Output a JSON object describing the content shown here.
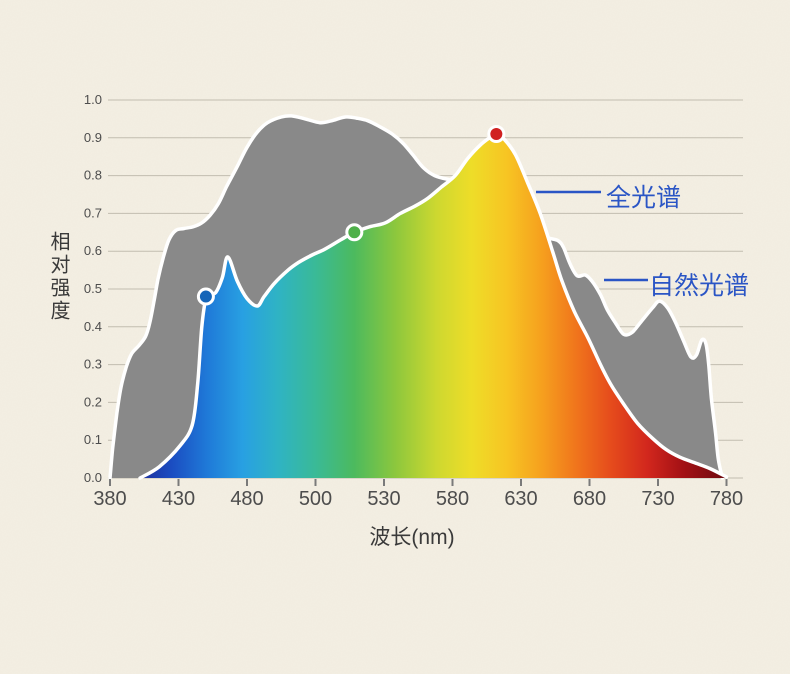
{
  "page": {
    "background_color": "#f4efe3",
    "grid_color": "#c2bdb0",
    "tick_color": "#7a7a7a",
    "tick_label_color": "#4d4d4d",
    "axis_title_color": "#3a3a3a"
  },
  "chart_data": {
    "type": "area",
    "title": "",
    "xlabel": "波长(nm)",
    "ylabel": "相对强度",
    "x_tick_labels": [
      "380",
      "430",
      "480",
      "500",
      "530",
      "580",
      "630",
      "680",
      "730",
      "780"
    ],
    "x_tick_values": [
      380,
      430,
      480,
      500,
      530,
      580,
      630,
      680,
      730,
      780
    ],
    "y_tick_labels": [
      "0.0",
      "0.1",
      "0.2",
      "0.3",
      "0.4",
      "0.5",
      "0.6",
      "0.7",
      "0.8",
      "0.9",
      "1.0"
    ],
    "y_tick_values": [
      0,
      0.1,
      0.2,
      0.3,
      0.4,
      0.5,
      0.6,
      0.7,
      0.8,
      0.9,
      1.0
    ],
    "ylim": [
      0,
      1
    ],
    "grid": true,
    "series": [
      {
        "name": "自然光谱",
        "type": "area",
        "fill": "#898989",
        "outline": "#ffffff",
        "points": [
          [
            380,
            0
          ],
          [
            382,
            0.08
          ],
          [
            385,
            0.17
          ],
          [
            388,
            0.24
          ],
          [
            392,
            0.295
          ],
          [
            396,
            0.33
          ],
          [
            401,
            0.35
          ],
          [
            406,
            0.375
          ],
          [
            409,
            0.41
          ],
          [
            412,
            0.465
          ],
          [
            415,
            0.525
          ],
          [
            419,
            0.585
          ],
          [
            423,
            0.63
          ],
          [
            428,
            0.655
          ],
          [
            434,
            0.66
          ],
          [
            441,
            0.665
          ],
          [
            447,
            0.675
          ],
          [
            453,
            0.695
          ],
          [
            459,
            0.725
          ],
          [
            465,
            0.77
          ],
          [
            473,
            0.825
          ],
          [
            480,
            0.875
          ],
          [
            483,
            0.915
          ],
          [
            486,
            0.94
          ],
          [
            490,
            0.955
          ],
          [
            493,
            0.958
          ],
          [
            497,
            0.95
          ],
          [
            502,
            0.94
          ],
          [
            507,
            0.945
          ],
          [
            513,
            0.955
          ],
          [
            518,
            0.952
          ],
          [
            523,
            0.945
          ],
          [
            528,
            0.93
          ],
          [
            536,
            0.91
          ],
          [
            544,
            0.885
          ],
          [
            551,
            0.855
          ],
          [
            559,
            0.82
          ],
          [
            567,
            0.8
          ],
          [
            577,
            0.79
          ],
          [
            587,
            0.785
          ],
          [
            596,
            0.765
          ],
          [
            607,
            0.73
          ],
          [
            618,
            0.695
          ],
          [
            629,
            0.67
          ],
          [
            640,
            0.65
          ],
          [
            650,
            0.635
          ],
          [
            657,
            0.628
          ],
          [
            661,
            0.61
          ],
          [
            666,
            0.565
          ],
          [
            671,
            0.535
          ],
          [
            677,
            0.537
          ],
          [
            682,
            0.52
          ],
          [
            688,
            0.485
          ],
          [
            693,
            0.445
          ],
          [
            699,
            0.41
          ],
          [
            705,
            0.38
          ],
          [
            711,
            0.385
          ],
          [
            718,
            0.415
          ],
          [
            726,
            0.45
          ],
          [
            731,
            0.468
          ],
          [
            737,
            0.45
          ],
          [
            743,
            0.41
          ],
          [
            749,
            0.36
          ],
          [
            754,
            0.32
          ],
          [
            758,
            0.325
          ],
          [
            762,
            0.365
          ],
          [
            765,
            0.355
          ],
          [
            767,
            0.3
          ],
          [
            769,
            0.21
          ],
          [
            772,
            0.12
          ],
          [
            774,
            0.05
          ],
          [
            777,
            0
          ]
        ]
      },
      {
        "name": "全光谱",
        "type": "area",
        "fill": "spectrum_gradient",
        "outline": "#ffffff",
        "points": [
          [
            402,
            0
          ],
          [
            416,
            0.03
          ],
          [
            431,
            0.085
          ],
          [
            440,
            0.14
          ],
          [
            444,
            0.25
          ],
          [
            447,
            0.4
          ],
          [
            450,
            0.475
          ],
          [
            453,
            0.49
          ],
          [
            457,
            0.49
          ],
          [
            462,
            0.53
          ],
          [
            466,
            0.585
          ],
          [
            473,
            0.52
          ],
          [
            480,
            0.475
          ],
          [
            483,
            0.455
          ],
          [
            485,
            0.48
          ],
          [
            488,
            0.515
          ],
          [
            492,
            0.55
          ],
          [
            495,
            0.57
          ],
          [
            499,
            0.59
          ],
          [
            504,
            0.605
          ],
          [
            511,
            0.63
          ],
          [
            517,
            0.65
          ],
          [
            524,
            0.665
          ],
          [
            531,
            0.675
          ],
          [
            542,
            0.7
          ],
          [
            553,
            0.72
          ],
          [
            562,
            0.74
          ],
          [
            572,
            0.77
          ],
          [
            582,
            0.8
          ],
          [
            591,
            0.845
          ],
          [
            600,
            0.88
          ],
          [
            607,
            0.9
          ],
          [
            612,
            0.91
          ],
          [
            618,
            0.895
          ],
          [
            626,
            0.855
          ],
          [
            635,
            0.78
          ],
          [
            644,
            0.7
          ],
          [
            653,
            0.6
          ],
          [
            660,
            0.52
          ],
          [
            669,
            0.44
          ],
          [
            679,
            0.37
          ],
          [
            688,
            0.3
          ],
          [
            696,
            0.245
          ],
          [
            706,
            0.19
          ],
          [
            715,
            0.145
          ],
          [
            726,
            0.105
          ],
          [
            736,
            0.075
          ],
          [
            746,
            0.055
          ],
          [
            757,
            0.04
          ],
          [
            768,
            0.025
          ],
          [
            780,
            0.003
          ]
        ]
      }
    ],
    "spectrum_gradient": [
      {
        "offset": 0.0,
        "color": "#1e2f9d"
      },
      {
        "offset": 0.055,
        "color": "#1b4ec2"
      },
      {
        "offset": 0.115,
        "color": "#1f7ad8"
      },
      {
        "offset": 0.175,
        "color": "#28a0e2"
      },
      {
        "offset": 0.235,
        "color": "#2fb3c4"
      },
      {
        "offset": 0.3,
        "color": "#3aba96"
      },
      {
        "offset": 0.365,
        "color": "#4cba5e"
      },
      {
        "offset": 0.435,
        "color": "#8cc73d"
      },
      {
        "offset": 0.505,
        "color": "#cdd830"
      },
      {
        "offset": 0.565,
        "color": "#eedd28"
      },
      {
        "offset": 0.625,
        "color": "#f7c523"
      },
      {
        "offset": 0.685,
        "color": "#f6a01e"
      },
      {
        "offset": 0.745,
        "color": "#f0741c"
      },
      {
        "offset": 0.805,
        "color": "#e54a1c"
      },
      {
        "offset": 0.865,
        "color": "#d2271d"
      },
      {
        "offset": 0.925,
        "color": "#a41115"
      },
      {
        "offset": 1.0,
        "color": "#6e0a0f"
      }
    ],
    "markers": [
      {
        "series": "全光谱",
        "x": 450,
        "y": 0.48,
        "color": "#1565b8",
        "name": "blue"
      },
      {
        "series": "全光谱",
        "x": 517,
        "y": 0.65,
        "color": "#4fb04a",
        "name": "green"
      },
      {
        "series": "全光谱",
        "x": 612,
        "y": 0.91,
        "color": "#d02020",
        "name": "red"
      }
    ],
    "callouts": [
      {
        "label": "全光谱",
        "color": "#2a55c5"
      },
      {
        "label": "自然光谱",
        "color": "#2a55c5"
      }
    ]
  }
}
